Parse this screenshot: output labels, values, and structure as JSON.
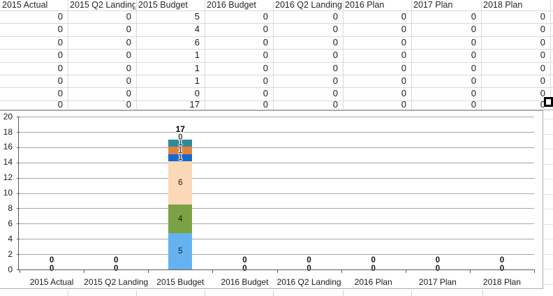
{
  "spreadsheet": {
    "columns": [
      "2015 Actual",
      "2015 Q2 Landing",
      "2015 Budget",
      "2016 Budget",
      "2016 Q2 Landing",
      "2016 Plan",
      "2017 Plan",
      "2018 Plan"
    ],
    "rows": [
      [
        0,
        0,
        5,
        0,
        0,
        0,
        0,
        0
      ],
      [
        0,
        0,
        4,
        0,
        0,
        0,
        0,
        0
      ],
      [
        0,
        0,
        6,
        0,
        0,
        0,
        0,
        0
      ],
      [
        0,
        0,
        1,
        0,
        0,
        0,
        0,
        0
      ],
      [
        0,
        0,
        1,
        0,
        0,
        0,
        0,
        0
      ],
      [
        0,
        0,
        1,
        0,
        0,
        0,
        0,
        0
      ],
      [
        0,
        0,
        0,
        0,
        0,
        0,
        0,
        0
      ],
      [
        0,
        0,
        17,
        0,
        0,
        0,
        0,
        0
      ]
    ]
  },
  "chart_data": {
    "type": "bar",
    "stacked": true,
    "title": "",
    "legend": false,
    "grid": true,
    "categories": [
      "2015 Actual",
      "2015 Q2 Landing",
      "2015 Budget",
      "2016 Budget",
      "2016 Q2 Landing",
      "2016 Plan",
      "2017 Plan",
      "2018 Plan"
    ],
    "series": [
      {
        "color": "#66B2F0",
        "values": [
          0,
          0,
          5,
          0,
          0,
          0,
          0,
          0
        ]
      },
      {
        "color": "#7AA245",
        "values": [
          0,
          0,
          4,
          0,
          0,
          0,
          0,
          0
        ]
      },
      {
        "color": "#FBD9B8",
        "values": [
          0,
          0,
          6,
          0,
          0,
          0,
          0,
          0
        ]
      },
      {
        "color": "#1569C9",
        "values": [
          0,
          0,
          1,
          0,
          0,
          0,
          0,
          0
        ]
      },
      {
        "color": "#DF8440",
        "values": [
          0,
          0,
          1,
          0,
          0,
          0,
          0,
          0
        ]
      },
      {
        "color": "#2F8B99",
        "values": [
          0,
          0,
          1,
          0,
          0,
          0,
          0,
          0
        ]
      },
      {
        "color": "#7F7F7F",
        "values": [
          0,
          0,
          0,
          0,
          0,
          0,
          0,
          0
        ]
      }
    ],
    "totals": [
      0,
      0,
      17,
      0,
      0,
      0,
      0,
      0
    ],
    "ylim": [
      0,
      20
    ],
    "ytick_step": 2,
    "yticks": [
      0,
      2,
      4,
      6,
      8,
      10,
      12,
      14,
      16,
      18,
      20
    ]
  },
  "colors": {
    "gridline": "#a6a6a6",
    "axis": "#595959",
    "table_border": "#d9d9d9",
    "chart_border": "#acacac",
    "selection": "#000000"
  }
}
